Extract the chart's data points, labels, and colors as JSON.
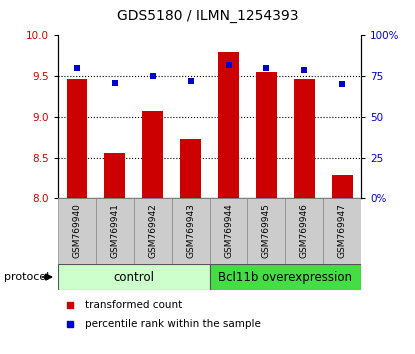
{
  "title": "GDS5180 / ILMN_1254393",
  "samples": [
    "GSM769940",
    "GSM769941",
    "GSM769942",
    "GSM769943",
    "GSM769944",
    "GSM769945",
    "GSM769946",
    "GSM769947"
  ],
  "transformed_counts": [
    9.47,
    8.55,
    9.07,
    8.73,
    9.79,
    9.55,
    9.47,
    8.28
  ],
  "percentile_ranks": [
    80,
    71,
    75,
    72,
    82,
    80,
    79,
    70
  ],
  "bar_color": "#cc0000",
  "dot_color": "#0000cc",
  "ylim_left": [
    8.0,
    10.0
  ],
  "ylim_right": [
    0,
    100
  ],
  "yticks_left": [
    8.0,
    8.5,
    9.0,
    9.5,
    10.0
  ],
  "yticks_right": [
    0,
    25,
    50,
    75,
    100
  ],
  "ytick_labels_right": [
    "0%",
    "25",
    "50",
    "75",
    "100%"
  ],
  "group_control_color": "#ccffcc",
  "group_bcl_color": "#44dd44",
  "bar_width": 0.55,
  "title_fontsize": 10,
  "tick_fontsize": 7.5,
  "sample_fontsize": 6.5,
  "group_fontsize": 8.5,
  "legend_fontsize": 7.5,
  "protocol_fontsize": 8
}
